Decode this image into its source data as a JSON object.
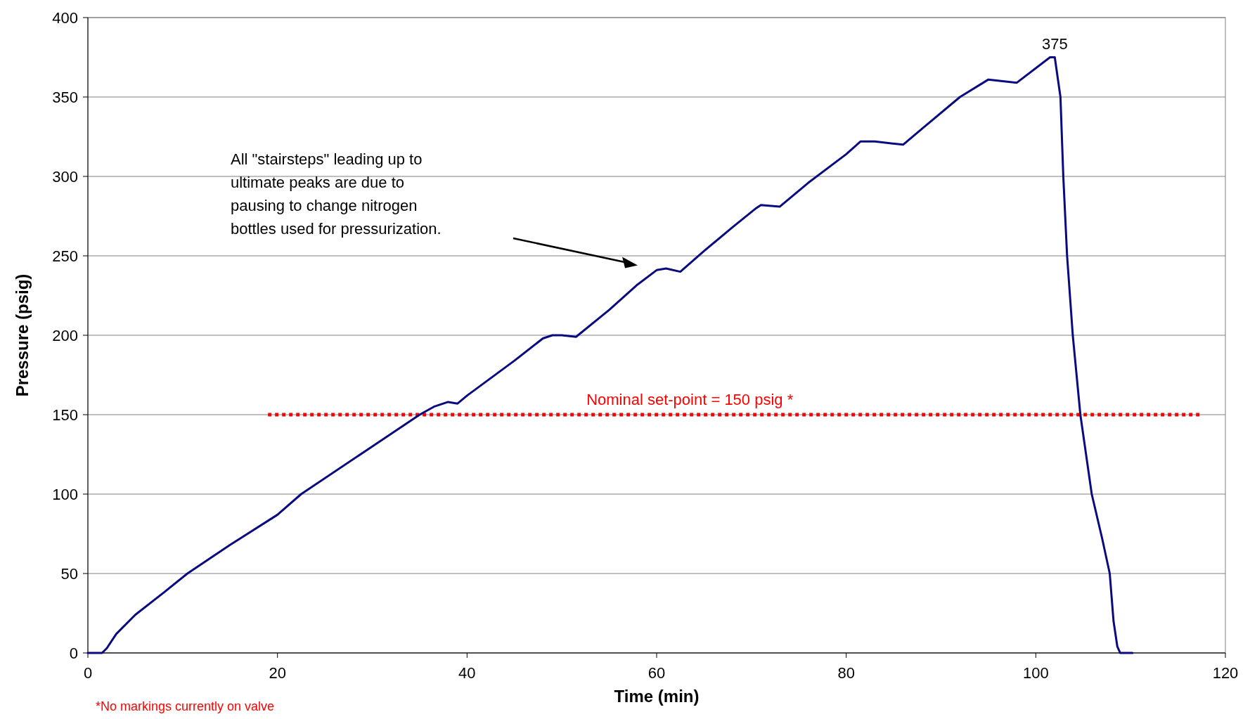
{
  "chart_data": {
    "type": "line",
    "xlabel": "Time (min)",
    "ylabel": "Pressure (psig)",
    "x": [
      0,
      1.5,
      2,
      3,
      5,
      8,
      10.5,
      15,
      20,
      22.5,
      30,
      35,
      36.5,
      38,
      39,
      40,
      45,
      48,
      49,
      50,
      51.5,
      55,
      58,
      60,
      61,
      62.5,
      65,
      68,
      70.5,
      71,
      73,
      76,
      80,
      81.5,
      83,
      86,
      88,
      92,
      95,
      98,
      101.5,
      102,
      102.6,
      102.9,
      103.3,
      103.9,
      104.7,
      105.9,
      107,
      107.8,
      108.2,
      108.6,
      108.9,
      110.2
    ],
    "series": [
      {
        "color": "#0a0a80",
        "values": [
          0,
          0,
          3,
          12,
          24,
          38,
          50,
          68,
          87,
          100,
          130,
          150,
          155,
          158,
          157,
          162,
          184,
          198,
          200,
          200,
          199,
          216,
          232,
          241,
          242,
          240,
          253,
          268,
          280,
          282,
          281,
          296,
          314,
          322,
          322,
          320,
          330,
          350,
          361,
          359,
          375,
          375,
          350,
          300,
          250,
          200,
          150,
          100,
          72,
          50,
          20,
          4,
          0,
          0
        ]
      }
    ],
    "xlim": [
      0,
      120
    ],
    "xticks": [
      0,
      20,
      40,
      60,
      80,
      100,
      120
    ],
    "ylim": [
      0,
      400
    ],
    "yticks": [
      0,
      50,
      100,
      150,
      200,
      250,
      300,
      350,
      400
    ],
    "grid": "y",
    "marker": "none",
    "line_style": "solid",
    "ref_lines": [
      {
        "axis": "y",
        "value": 150,
        "label": "Nominal set-point = 150 psig *",
        "color": "#ff0000",
        "line_style": "dotted"
      }
    ],
    "annotations": [
      {
        "text": "375",
        "x": 102,
        "y": 375
      },
      "All \"stairsteps\" leading up to\nultimate peaks are due to\npausing to change nitrogen\nbottles used for pressurization.",
      "*No markings currently on valve"
    ]
  }
}
